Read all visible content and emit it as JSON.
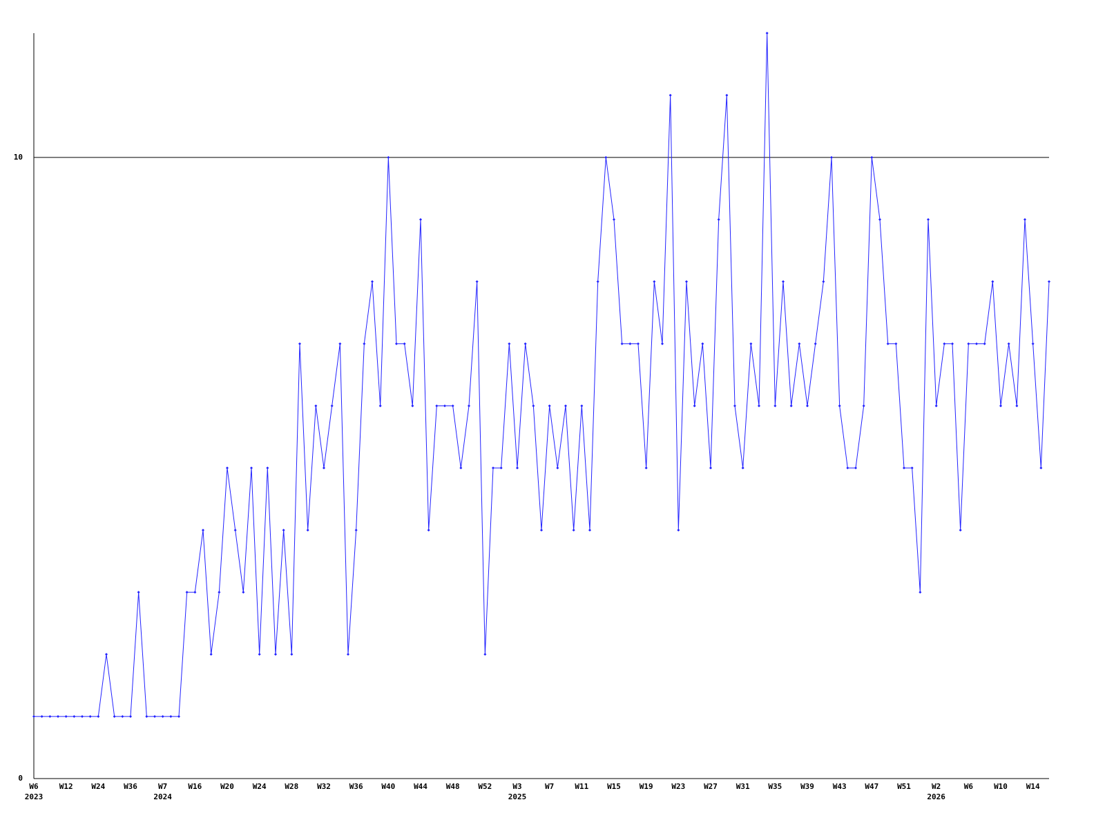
{
  "chart_data": {
    "type": "line",
    "categories": [
      "W6",
      null,
      null,
      null,
      "W12",
      null,
      null,
      null,
      "W24",
      null,
      null,
      null,
      "W36",
      null,
      null,
      null,
      "W7",
      null,
      null,
      null,
      "W16",
      null,
      null,
      null,
      "W20",
      null,
      null,
      null,
      "W24",
      null,
      null,
      null,
      "W28",
      null,
      null,
      null,
      "W32",
      null,
      null,
      null,
      "W36",
      null,
      null,
      null,
      "W40",
      null,
      null,
      null,
      "W44",
      null,
      null,
      null,
      "W48",
      null,
      null,
      null,
      "W52",
      null,
      null,
      null,
      "W3",
      null,
      null,
      null,
      "W7",
      null,
      null,
      null,
      "W11",
      null,
      null,
      null,
      "W15",
      null,
      null,
      null,
      "W19",
      null,
      null,
      null,
      "W23",
      null,
      null,
      null,
      "W27",
      null,
      null,
      null,
      "W31",
      null,
      null,
      null,
      "W35",
      null,
      null,
      null,
      "W39",
      null,
      null,
      null,
      "W43",
      null,
      null,
      null,
      "W47",
      null,
      null,
      null,
      "W51",
      null,
      null,
      null,
      "W2",
      null,
      null,
      null,
      "W6",
      null,
      null,
      null,
      "W10",
      null,
      null,
      null,
      "W14",
      null,
      null
    ],
    "years": [
      "2023",
      null,
      null,
      null,
      null,
      null,
      null,
      null,
      null,
      null,
      null,
      null,
      null,
      null,
      null,
      null,
      "2024",
      null,
      null,
      null,
      null,
      null,
      null,
      null,
      null,
      null,
      null,
      null,
      null,
      null,
      null,
      null,
      null,
      null,
      null,
      null,
      null,
      null,
      null,
      null,
      null,
      null,
      null,
      null,
      null,
      null,
      null,
      null,
      null,
      null,
      null,
      null,
      null,
      null,
      null,
      null,
      null,
      null,
      null,
      null,
      "2025",
      null,
      null,
      null,
      null,
      null,
      null,
      null,
      null,
      null,
      null,
      null,
      null,
      null,
      null,
      null,
      null,
      null,
      null,
      null,
      null,
      null,
      null,
      null,
      null,
      null,
      null,
      null,
      null,
      null,
      null,
      null,
      null,
      null,
      null,
      null,
      null,
      null,
      null,
      null,
      null,
      null,
      null,
      null,
      null,
      null,
      null,
      null,
      null,
      null,
      null,
      null,
      "2026",
      null,
      null,
      null,
      null,
      null,
      null,
      null,
      null,
      null,
      null,
      null,
      null,
      null,
      null
    ],
    "series": [
      {
        "color": "#2222ff",
        "values": [
          1,
          1,
          1,
          1,
          1,
          1,
          1,
          1,
          1,
          2,
          1,
          1,
          1,
          3,
          1,
          1,
          1,
          1,
          1,
          3,
          3,
          4,
          2,
          3,
          5,
          4,
          3,
          5,
          2,
          5,
          2,
          4,
          2,
          7,
          4,
          6,
          5,
          6,
          7,
          2,
          4,
          7,
          8,
          6,
          10,
          7,
          7,
          6,
          9,
          4,
          6,
          6,
          6,
          5,
          6,
          8,
          2,
          5,
          5,
          7,
          5,
          7,
          6,
          4,
          6,
          5,
          6,
          4,
          6,
          4,
          8,
          10,
          9,
          7,
          7,
          7,
          5,
          8,
          7,
          11,
          4,
          8,
          6,
          7,
          5,
          9,
          11,
          6,
          5,
          7,
          6,
          12,
          6,
          8,
          6,
          7,
          6,
          7,
          8,
          10,
          6,
          5,
          5,
          6,
          10,
          9,
          7,
          7,
          5,
          5,
          3,
          9,
          6,
          7,
          7,
          4,
          7,
          7,
          7,
          8,
          6,
          7,
          6,
          9,
          7,
          5,
          8
        ]
      }
    ],
    "ylim": [
      0,
      12
    ],
    "yticks": [
      0,
      10
    ],
    "grid": true
  }
}
